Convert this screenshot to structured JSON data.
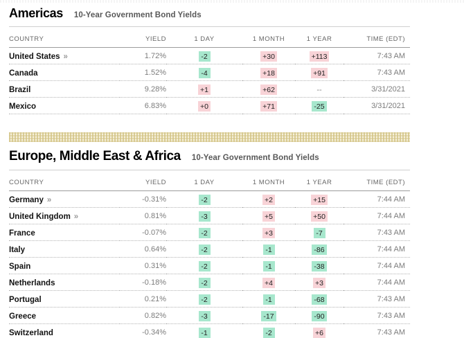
{
  "colors": {
    "change_negative_bg": "#a7e7cd",
    "change_positive_bg": "#f8d3d7",
    "badge_text": "#222222",
    "country_text": "#121212",
    "muted_text": "#7c7c7c"
  },
  "link_marker": "»",
  "no_change_placeholder": "--",
  "sections": [
    {
      "title": "Americas",
      "subtitle": "10-Year Government Bond Yields",
      "columns": [
        "COUNTRY",
        "YIELD",
        "1 DAY",
        "1 MONTH",
        "1 YEAR",
        "TIME (EDT)"
      ],
      "rows": [
        {
          "country": "United States",
          "link": true,
          "yield": "1.72%",
          "changes": [
            "-2",
            "+30",
            "+113"
          ],
          "time": "7:43 AM"
        },
        {
          "country": "Canada",
          "link": false,
          "yield": "1.52%",
          "changes": [
            "-4",
            "+18",
            "+91"
          ],
          "time": "7:43 AM"
        },
        {
          "country": "Brazil",
          "link": false,
          "yield": "9.28%",
          "changes": [
            "+1",
            "+62",
            "--"
          ],
          "time": "3/31/2021"
        },
        {
          "country": "Mexico",
          "link": false,
          "yield": "6.83%",
          "changes": [
            "+0",
            "+71",
            "-25"
          ],
          "time": "3/31/2021"
        }
      ]
    },
    {
      "title": "Europe, Middle East & Africa",
      "subtitle": "10-Year Government Bond Yields",
      "columns": [
        "COUNTRY",
        "YIELD",
        "1 DAY",
        "1 MONTH",
        "1 YEAR",
        "TIME (EDT)"
      ],
      "rows": [
        {
          "country": "Germany",
          "link": true,
          "yield": "-0.31%",
          "changes": [
            "-2",
            "+2",
            "+15"
          ],
          "time": "7:44 AM"
        },
        {
          "country": "United Kingdom",
          "link": true,
          "yield": "0.81%",
          "changes": [
            "-3",
            "+5",
            "+50"
          ],
          "time": "7:44 AM"
        },
        {
          "country": "France",
          "link": false,
          "yield": "-0.07%",
          "changes": [
            "-2",
            "+3",
            "-7"
          ],
          "time": "7:43 AM"
        },
        {
          "country": "Italy",
          "link": false,
          "yield": "0.64%",
          "changes": [
            "-2",
            "-1",
            "-86"
          ],
          "time": "7:44 AM"
        },
        {
          "country": "Spain",
          "link": false,
          "yield": "0.31%",
          "changes": [
            "-2",
            "-1",
            "-38"
          ],
          "time": "7:44 AM"
        },
        {
          "country": "Netherlands",
          "link": false,
          "yield": "-0.18%",
          "changes": [
            "-2",
            "+4",
            "+3"
          ],
          "time": "7:44 AM"
        },
        {
          "country": "Portugal",
          "link": false,
          "yield": "0.21%",
          "changes": [
            "-2",
            "-1",
            "-68"
          ],
          "time": "7:43 AM"
        },
        {
          "country": "Greece",
          "link": false,
          "yield": "0.82%",
          "changes": [
            "-3",
            "-17",
            "-90"
          ],
          "time": "7:43 AM"
        },
        {
          "country": "Switzerland",
          "link": false,
          "yield": "-0.34%",
          "changes": [
            "-1",
            "-2",
            "+6"
          ],
          "time": "7:43 AM"
        }
      ]
    }
  ]
}
